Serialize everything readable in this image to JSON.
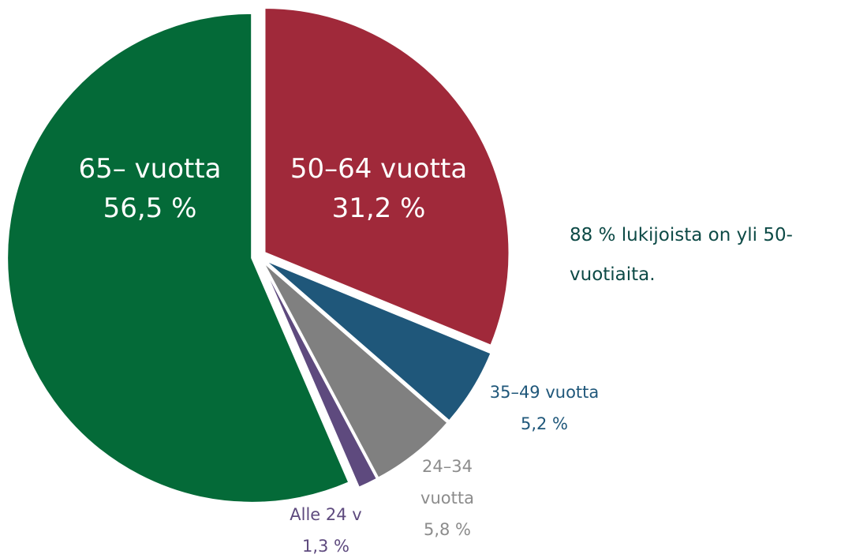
{
  "chart_data": {
    "type": "pie",
    "categories": [
      "50–64 vuotta",
      "35–49 vuotta",
      "24–34 vuotta",
      "Alle 24 v",
      "65– vuotta"
    ],
    "values": [
      31.2,
      5.2,
      5.8,
      1.3,
      56.5
    ],
    "value_labels": [
      "31,2 %",
      "5,2 %",
      "5,8 %",
      "1,3 %",
      "56,5 %"
    ],
    "colors": [
      "#a0293a",
      "#1f577a",
      "#808080",
      "#5e4a7e",
      "#046a38"
    ],
    "annotation": "88 % lukijoista on yli 50-vuotiaita."
  }
}
